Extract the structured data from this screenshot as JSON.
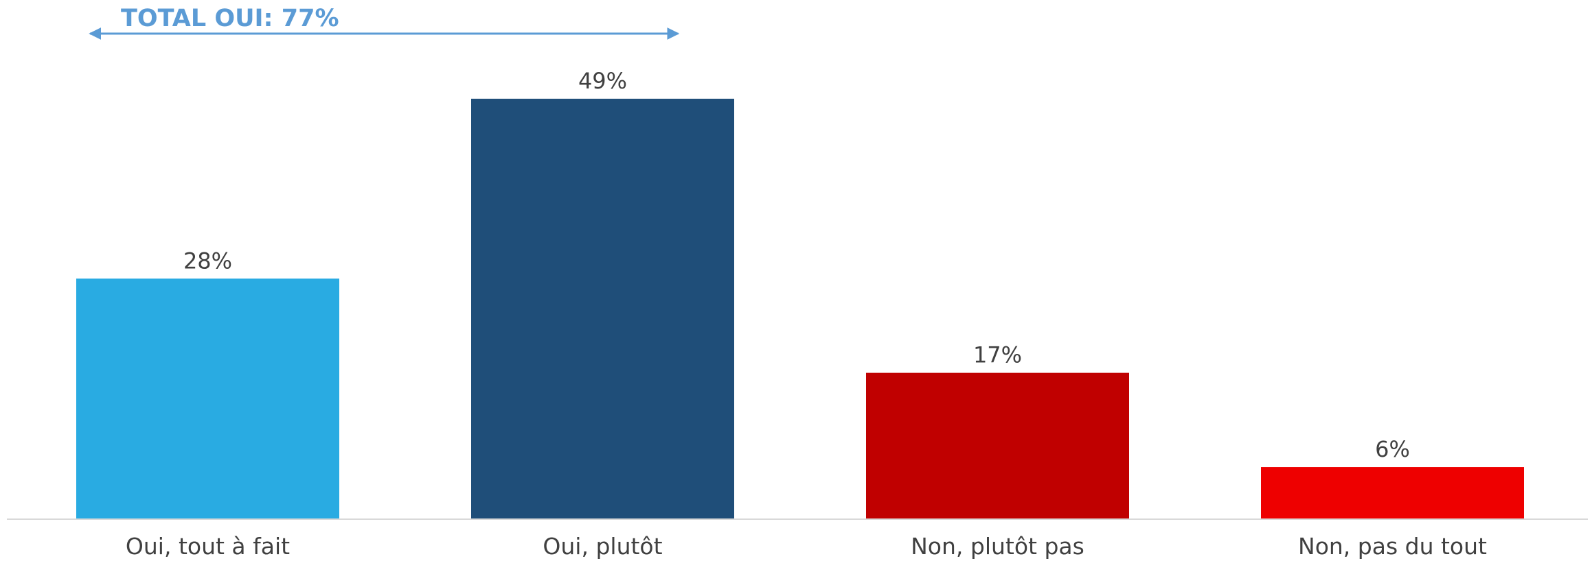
{
  "chart_data": {
    "type": "bar",
    "categories": [
      "Oui, tout à fait",
      "Oui, plutôt",
      "Non, plutôt pas",
      "Non, pas du tout"
    ],
    "values": [
      28,
      49,
      17,
      6
    ],
    "value_labels": [
      "28%",
      "49%",
      "17%",
      "6%"
    ],
    "colors": [
      "#29ABE2",
      "#1F4E79",
      "#C00000",
      "#EE0000"
    ],
    "ylim": [
      0,
      55
    ],
    "grid": false,
    "annotation": {
      "text": "TOTAL OUI: 77%",
      "color": "#5B9BD5",
      "spans_categories": [
        "Oui, tout à fait",
        "Oui, plutôt"
      ]
    },
    "axis_color": "#D9D9D9"
  }
}
